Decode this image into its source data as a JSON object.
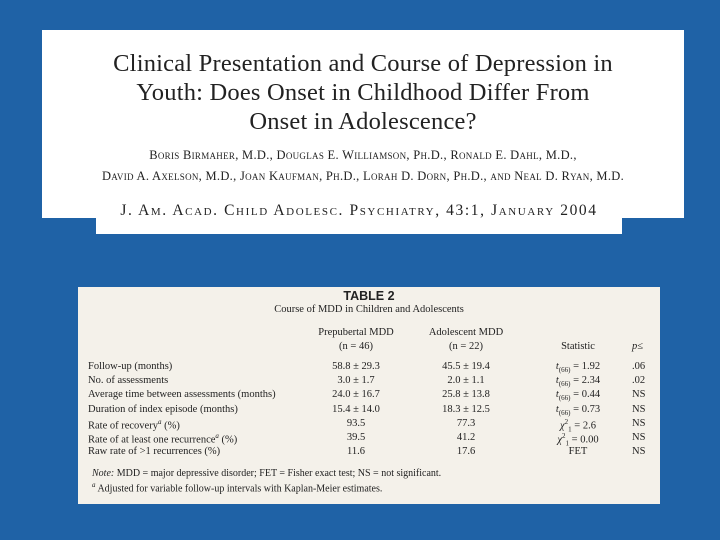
{
  "header": {
    "title": [
      "Clinical Presentation and Course of Depression in",
      "Youth: Does Onset in Childhood Differ From",
      "Onset in Adolescence?"
    ],
    "authors": [
      "Boris Birmaher, M.D., Douglas E. Williamson, Ph.D., Ronald E. Dahl, M.D.,",
      "David A. Axelson, M.D., Joan Kaufman, Ph.D., Lorah D. Dorn, Ph.D., and Neal D. Ryan, M.D."
    ],
    "journal": "J. Am. Acad. Child Adolesc. Psychiatry, 43:1, January 2004"
  },
  "table": {
    "title": "TABLE 2",
    "caption": "Course of MDD in Children and Adolescents",
    "columns": [
      {
        "name": "Prepubertal MDD",
        "n": "(n = 46)"
      },
      {
        "name": "Adolescent MDD",
        "n": "(n = 22)"
      },
      {
        "name": "Statistic"
      },
      {
        "name": "p≤"
      }
    ],
    "rows": [
      {
        "label": "Follow-up (months)",
        "pre": "58.8 ± 29.3",
        "ado": "45.5 ± 19.4",
        "stat": {
          "sym": "t",
          "sub": "(66)",
          "val": " = 1.92"
        },
        "p": ".06"
      },
      {
        "label": "No. of assessments",
        "pre": "3.0 ± 1.7",
        "ado": "2.0 ± 1.1",
        "stat": {
          "sym": "t",
          "sub": "(66)",
          "val": " = 2.34"
        },
        "p": ".02"
      },
      {
        "label": "Average time between assessments (months)",
        "pre": "24.0 ± 16.7",
        "ado": "25.8 ± 13.8",
        "stat": {
          "sym": "t",
          "sub": "(66)",
          "val": " = 0.44"
        },
        "p": "NS"
      },
      {
        "label": "Duration of index episode (months)",
        "pre": "15.4 ± 14.0",
        "ado": "18.3 ± 12.5",
        "stat": {
          "sym": "t",
          "sub": "(66)",
          "val": " = 0.73"
        },
        "p": "NS"
      },
      {
        "label": "Rate of recovery",
        "mark": "a",
        "unit": " (%)",
        "pre": "93.5",
        "ado": "77.3",
        "stat": {
          "sym": "χ",
          "sup": "2",
          "sub": "1",
          "val": " = 2.6"
        },
        "p": "NS"
      },
      {
        "label": "Rate of at least one recurrence",
        "mark": "a",
        "unit": " (%)",
        "pre": "39.5",
        "ado": "41.2",
        "stat": {
          "sym": "χ",
          "sup": "2",
          "sub": "1",
          "val": " = 0.00"
        },
        "p": "NS"
      },
      {
        "label": "Raw rate of >1 recurrences (%)",
        "pre": "11.6",
        "ado": "17.6",
        "stat": {
          "val": "FET"
        },
        "p": "NS"
      }
    ],
    "notes": [
      {
        "lead": "Note:",
        "text": " MDD = major depressive disorder; FET = Fisher exact test; NS = not significant."
      },
      {
        "mark": "a",
        "text": " Adjusted for variable follow-up intervals with Kaplan-Meier estimates."
      }
    ]
  }
}
